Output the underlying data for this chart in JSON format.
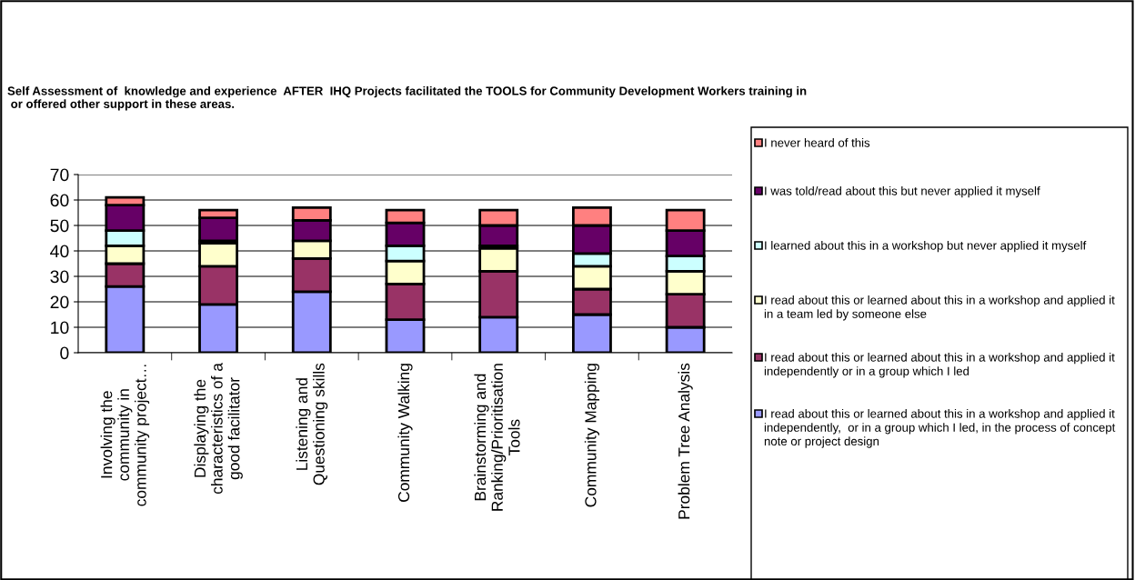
{
  "chart_data": {
    "type": "bar",
    "stacked": true,
    "title": "Self Assessment of  knowledge and experience  AFTER  IHQ Projects facilitated the TOOLS for Community Development Workers training in  or offered other support in these areas.",
    "categories": [
      "Involving the community in community project…",
      "Displaying the characteristics of a good facilitator",
      "Listening and Questioning skills",
      "Community Walking",
      "Brainstorming and Ranking/Prioritisation Tools",
      "Community Mapping",
      "Problem Tree Analysis"
    ],
    "series": [
      {
        "name": "I read about this or learned about this in a workshop and applied it independently,  or in a group which I led, in the process of concept note or project design",
        "color": "#9999ff",
        "values": [
          26,
          19,
          24,
          13,
          14,
          15,
          10
        ]
      },
      {
        "name": "I read about this or learned about this in a workshop and applied it independently or in a group which I led",
        "color": "#993366",
        "values": [
          9,
          15,
          13,
          14,
          18,
          10,
          13
        ]
      },
      {
        "name": "I read about this or learned about this in a workshop and applied it in a team led by someone else",
        "color": "#ffffcc",
        "values": [
          7,
          9,
          7,
          9,
          9,
          9,
          9
        ]
      },
      {
        "name": "I learned about this in a workshop but never applied it myself",
        "color": "#ccffff",
        "values": [
          6,
          1,
          0,
          6,
          1,
          5,
          6
        ]
      },
      {
        "name": "I was told/read about this but never applied it myself",
        "color": "#660066",
        "values": [
          10,
          9,
          8,
          9,
          8,
          11,
          10
        ]
      },
      {
        "name": "I never heard of this",
        "color": "#ff8080",
        "values": [
          3,
          3,
          5,
          5,
          6,
          7,
          8
        ]
      }
    ],
    "ylim": [
      0,
      70
    ],
    "yticks": [
      0,
      10,
      20,
      30,
      40,
      50,
      60,
      70
    ],
    "grid": "y",
    "legend": "right"
  }
}
